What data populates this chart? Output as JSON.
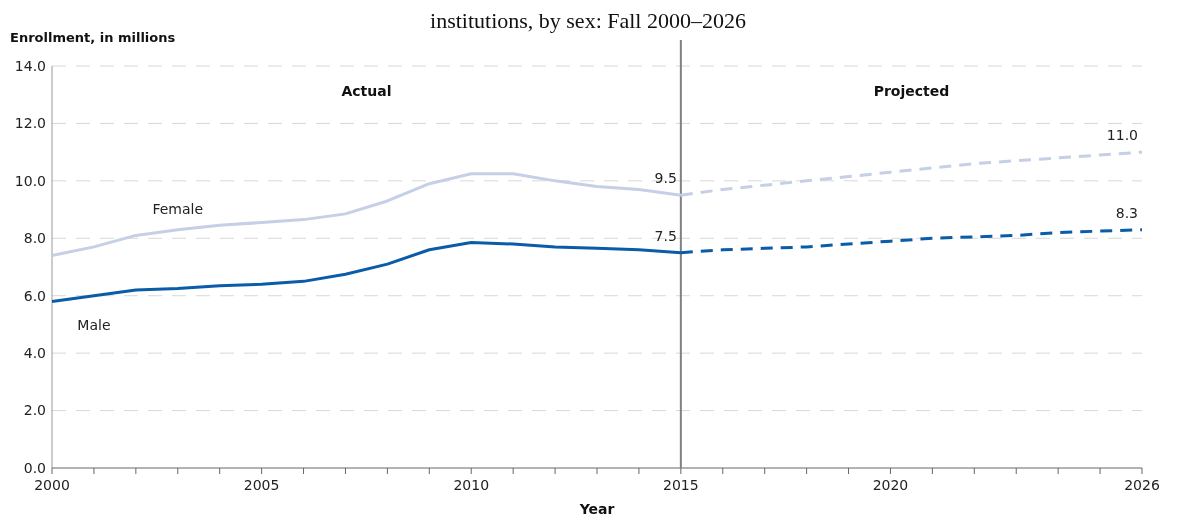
{
  "chart_data": {
    "type": "line",
    "title": "institutions, by sex: Fall 2000–2026",
    "xlabel": "Year",
    "ylabel": "Enrollment, in millions",
    "xlim": [
      2000,
      2026
    ],
    "xticks": [
      2000,
      {
        "value": 2001,
        "label": null
      },
      {
        "value": 2002,
        "label": null
      },
      {
        "value": 2003,
        "label": null
      },
      {
        "value": 2004,
        "label": null
      },
      2005,
      {
        "value": 2006,
        "label": null
      },
      {
        "value": 2007,
        "label": null
      },
      {
        "value": 2008,
        "label": null
      },
      {
        "value": 2009,
        "label": null
      },
      2010,
      {
        "value": 2011,
        "label": null
      },
      {
        "value": 2012,
        "label": null
      },
      {
        "value": 2013,
        "label": null
      },
      {
        "value": 2014,
        "label": null
      },
      2015,
      {
        "value": 2016,
        "label": null
      },
      {
        "value": 2017,
        "label": null
      },
      {
        "value": 2018,
        "label": null
      },
      {
        "value": 2019,
        "label": null
      },
      2020,
      {
        "value": 2021,
        "label": null
      },
      {
        "value": 2022,
        "label": null
      },
      {
        "value": 2023,
        "label": null
      },
      {
        "value": 2024,
        "label": null
      },
      {
        "value": 2025,
        "label": null
      },
      2026
    ],
    "ylim": [
      0,
      14
    ],
    "yticks": [
      {
        "value": 0,
        "label": "0.0"
      },
      {
        "value": 2,
        "label": "2.0"
      },
      {
        "value": 4,
        "label": "4.0"
      },
      {
        "value": 6,
        "label": "6.0"
      },
      {
        "value": 8,
        "label": "8.0"
      },
      {
        "value": 10,
        "label": "10.0"
      },
      {
        "value": 12,
        "label": "12.0"
      },
      {
        "value": 14,
        "label": "14.0"
      }
    ],
    "grid": "y",
    "marker": "none",
    "ref_lines": [
      {
        "axis": "x",
        "value": 2015,
        "color": "#808080"
      }
    ],
    "annotations": [
      "Actual",
      "Projected"
    ],
    "series": [
      {
        "name": "Female",
        "color": "#c5cfe6",
        "line_style": "solid",
        "x": [
          2000,
          2001,
          2002,
          2003,
          2004,
          2005,
          2006,
          2007,
          2008,
          2009,
          2010,
          2011,
          2012,
          2013,
          2014,
          2015
        ],
        "values": [
          7.4,
          7.7,
          8.1,
          8.3,
          8.45,
          8.55,
          8.65,
          8.85,
          9.3,
          9.9,
          10.25,
          10.25,
          10.0,
          9.8,
          9.7,
          9.5
        ],
        "value_labels": [
          null,
          null,
          null,
          null,
          null,
          null,
          null,
          null,
          null,
          null,
          null,
          null,
          null,
          null,
          null,
          "9.5"
        ]
      },
      {
        "name": "Male",
        "color": "#0a5ca8",
        "line_style": "solid",
        "x": [
          2000,
          2001,
          2002,
          2003,
          2004,
          2005,
          2006,
          2007,
          2008,
          2009,
          2010,
          2011,
          2012,
          2013,
          2014,
          2015
        ],
        "values": [
          5.8,
          6.0,
          6.2,
          6.25,
          6.35,
          6.4,
          6.5,
          6.75,
          7.1,
          7.6,
          7.85,
          7.8,
          7.7,
          7.65,
          7.6,
          7.5
        ],
        "value_labels": [
          null,
          null,
          null,
          null,
          null,
          null,
          null,
          null,
          null,
          null,
          null,
          null,
          null,
          null,
          null,
          "7.5"
        ]
      },
      {
        "color": "#c5cfe6",
        "line_style": "dashed",
        "x": [
          2015,
          2016,
          2017,
          2018,
          2019,
          2020,
          2021,
          2022,
          2023,
          2024,
          2025,
          2026
        ],
        "values": [
          9.5,
          9.7,
          9.85,
          10.0,
          10.15,
          10.3,
          10.45,
          10.6,
          10.7,
          10.8,
          10.9,
          11.0
        ],
        "value_labels": [
          null,
          null,
          null,
          null,
          null,
          null,
          null,
          null,
          null,
          null,
          null,
          "11.0"
        ]
      },
      {
        "color": "#0a5ca8",
        "line_style": "dashed",
        "x": [
          2015,
          2016,
          2017,
          2018,
          2019,
          2020,
          2021,
          2022,
          2023,
          2024,
          2025,
          2026
        ],
        "values": [
          7.5,
          7.6,
          7.65,
          7.7,
          7.8,
          7.9,
          8.0,
          8.05,
          8.1,
          8.2,
          8.25,
          8.3
        ],
        "value_labels": [
          null,
          null,
          null,
          null,
          null,
          null,
          null,
          null,
          null,
          null,
          null,
          "8.3"
        ]
      }
    ]
  }
}
